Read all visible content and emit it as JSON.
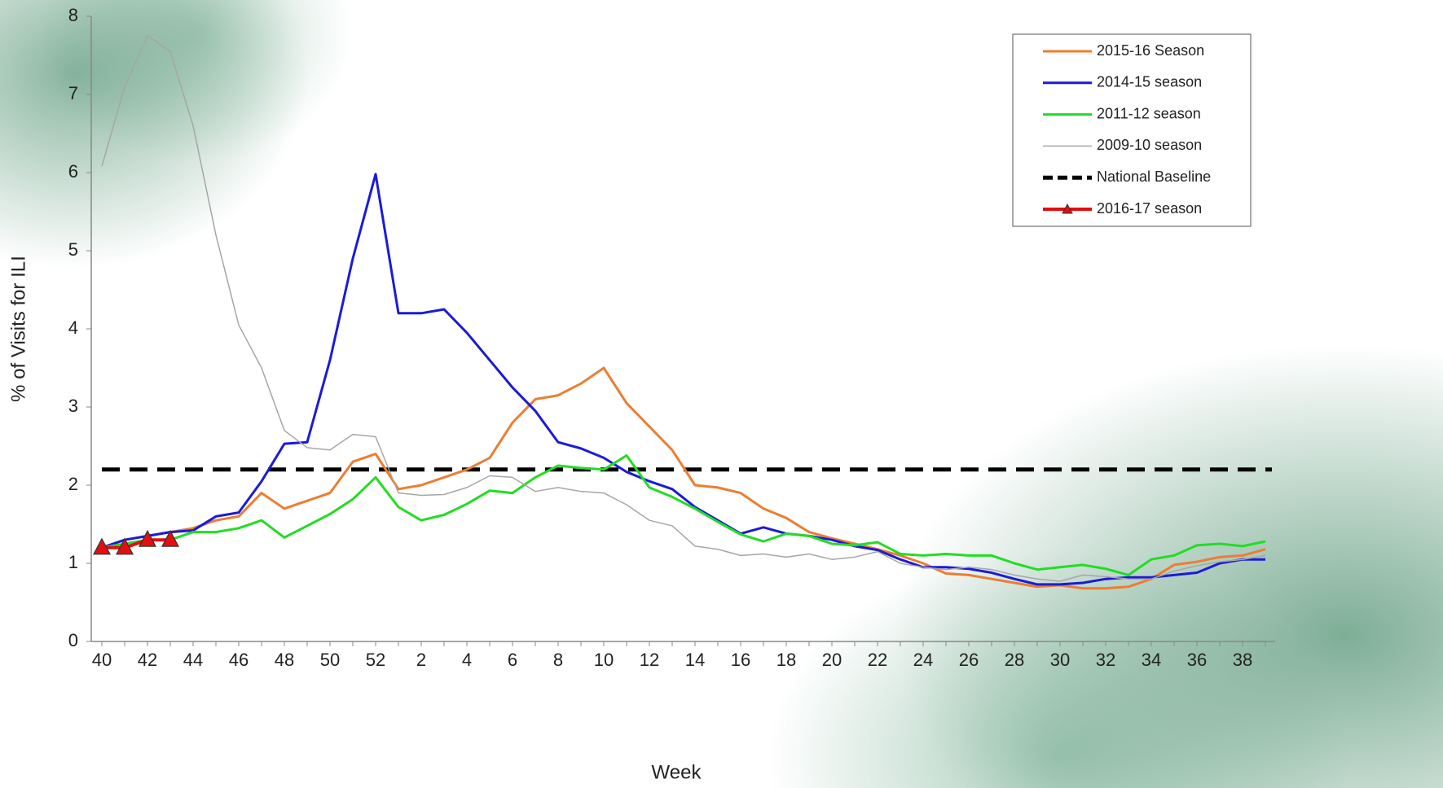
{
  "chart_data": {
    "type": "line",
    "xlabel": "Week",
    "ylabel": "% of Visits for ILI",
    "categories": [
      "40",
      null,
      "42",
      null,
      "44",
      null,
      "46",
      null,
      "48",
      null,
      "50",
      null,
      "52",
      null,
      "2",
      null,
      "4",
      null,
      "6",
      null,
      "8",
      null,
      "10",
      null,
      "12",
      null,
      "14",
      null,
      "16",
      null,
      "18",
      null,
      "20",
      null,
      "22",
      null,
      "24",
      null,
      "26",
      null,
      "28",
      null,
      "30",
      null,
      "32",
      null,
      "34",
      null,
      "36",
      null,
      "38",
      null
    ],
    "ylim": [
      0,
      8
    ],
    "yticks": [
      0,
      1,
      2,
      3,
      4,
      5,
      6,
      7,
      8
    ],
    "series": [
      {
        "name": "2015-16 Season",
        "color": "#ed7d31",
        "width": 3,
        "values": [
          1.2,
          1.3,
          1.35,
          1.4,
          1.45,
          1.55,
          1.6,
          1.9,
          1.7,
          1.8,
          1.9,
          2.3,
          2.4,
          1.95,
          2.0,
          2.1,
          2.2,
          2.35,
          2.8,
          3.1,
          3.15,
          3.3,
          3.5,
          3.05,
          2.75,
          2.45,
          2.0,
          1.97,
          1.9,
          1.7,
          1.58,
          1.4,
          1.32,
          1.25,
          1.18,
          1.1,
          1.0,
          0.87,
          0.85,
          0.8,
          0.75,
          0.7,
          0.72,
          0.68,
          0.68,
          0.7,
          0.8,
          0.98,
          1.02,
          1.08,
          1.1,
          1.18
        ]
      },
      {
        "name": "2014-15 season",
        "color": "#1a1adb",
        "width": 3,
        "values": [
          1.2,
          1.3,
          1.35,
          1.4,
          1.42,
          1.6,
          1.65,
          2.05,
          2.53,
          2.55,
          3.6,
          4.9,
          5.98,
          4.2,
          4.2,
          4.25,
          3.95,
          3.6,
          3.25,
          2.95,
          2.55,
          2.47,
          2.35,
          2.17,
          2.05,
          1.95,
          1.72,
          1.55,
          1.38,
          1.46,
          1.38,
          1.35,
          1.3,
          1.22,
          1.17,
          1.05,
          0.95,
          0.95,
          0.93,
          0.88,
          0.8,
          0.73,
          0.73,
          0.75,
          0.8,
          0.82,
          0.82,
          0.85,
          0.88,
          1.0,
          1.05,
          1.05
        ]
      },
      {
        "name": "2011-12 season",
        "color": "#22dd22",
        "width": 3,
        "values": [
          1.2,
          1.25,
          1.3,
          1.3,
          1.4,
          1.4,
          1.45,
          1.55,
          1.33,
          1.48,
          1.63,
          1.82,
          2.1,
          1.72,
          1.55,
          1.62,
          1.76,
          1.93,
          1.9,
          2.1,
          2.25,
          2.22,
          2.2,
          2.38,
          1.97,
          1.85,
          1.7,
          1.53,
          1.37,
          1.28,
          1.38,
          1.35,
          1.25,
          1.23,
          1.27,
          1.12,
          1.1,
          1.12,
          1.1,
          1.1,
          1.0,
          0.92,
          0.95,
          0.98,
          0.93,
          0.85,
          1.05,
          1.1,
          1.23,
          1.25,
          1.22,
          1.28
        ]
      },
      {
        "name": "2009-10 season",
        "color": "#a6a6a6",
        "width": 1.5,
        "values": [
          6.08,
          7.1,
          7.75,
          7.55,
          6.6,
          5.2,
          4.05,
          3.5,
          2.7,
          2.48,
          2.45,
          2.65,
          2.62,
          1.9,
          1.87,
          1.88,
          1.97,
          2.12,
          2.1,
          1.92,
          1.97,
          1.92,
          1.9,
          1.75,
          1.55,
          1.48,
          1.22,
          1.18,
          1.1,
          1.12,
          1.08,
          1.12,
          1.05,
          1.08,
          1.15,
          1.0,
          0.95,
          0.92,
          0.95,
          0.92,
          0.85,
          0.8,
          0.77,
          0.85,
          0.83,
          0.8,
          0.8,
          0.9,
          0.97,
          1.02,
          1.05,
          1.1
        ]
      },
      {
        "name": "2016-17 season",
        "color": "#e01010",
        "width": 4,
        "marker": "triangle",
        "values": [
          1.2,
          1.2,
          1.3,
          1.3,
          null,
          null,
          null,
          null,
          null,
          null,
          null,
          null,
          null,
          null,
          null,
          null,
          null,
          null,
          null,
          null,
          null,
          null,
          null,
          null,
          null,
          null,
          null,
          null,
          null,
          null,
          null,
          null,
          null,
          null,
          null,
          null,
          null,
          null,
          null,
          null,
          null,
          null,
          null,
          null,
          null,
          null,
          null,
          null,
          null,
          null,
          null,
          null
        ]
      }
    ],
    "reference_line": {
      "name": "National Baseline",
      "value": 2.2,
      "color": "#000000"
    }
  }
}
